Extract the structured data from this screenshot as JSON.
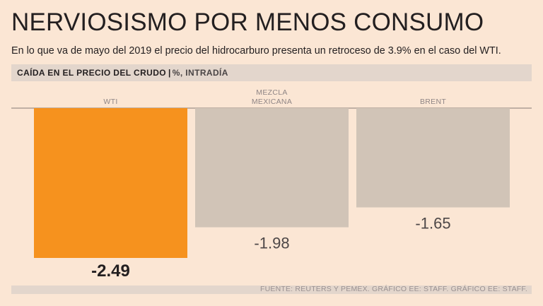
{
  "header": {
    "title": "NERVIOSISMO POR MENOS CONSUMO",
    "subtitle": "En lo que va de mayo del 2019 el precio del hidrocarburo presenta un retroceso de 3.9% en el caso del WTI."
  },
  "strip": {
    "title": "CAÍDA EN EL PRECIO DEL CRUDO",
    "separator": "|",
    "unit": "%, INTRADÍA"
  },
  "footer": {
    "source": "FUENTE: REUTERS Y PEMEX. GRÁFICO EE: STAFF. GRÁFICO EE: STAFF."
  },
  "colors": {
    "background": "#fbe6d4",
    "highlight": "#f6921e",
    "neutral": "#d1c4b7",
    "text": "#231f20",
    "muted": "#9a9191"
  },
  "chart_data": {
    "type": "bar",
    "title": "CAÍDA EN EL PRECIO DEL CRUDO",
    "subtitle": "%, INTRADÍA",
    "categories": [
      "WTI",
      "MEZCLA MEXICANA",
      "BRENT"
    ],
    "category_lines": [
      [
        "WTI"
      ],
      [
        "MEZCLA",
        "MEXICANA"
      ],
      [
        "BRENT"
      ]
    ],
    "values": [
      -2.49,
      -1.98,
      -1.65
    ],
    "labels": [
      "-2.49",
      "-1.98",
      "-1.65"
    ],
    "highlight_index": 0,
    "ylim": [
      -2.49,
      0
    ],
    "xlabel": "",
    "ylabel": "",
    "grid": false,
    "legend": "none"
  }
}
